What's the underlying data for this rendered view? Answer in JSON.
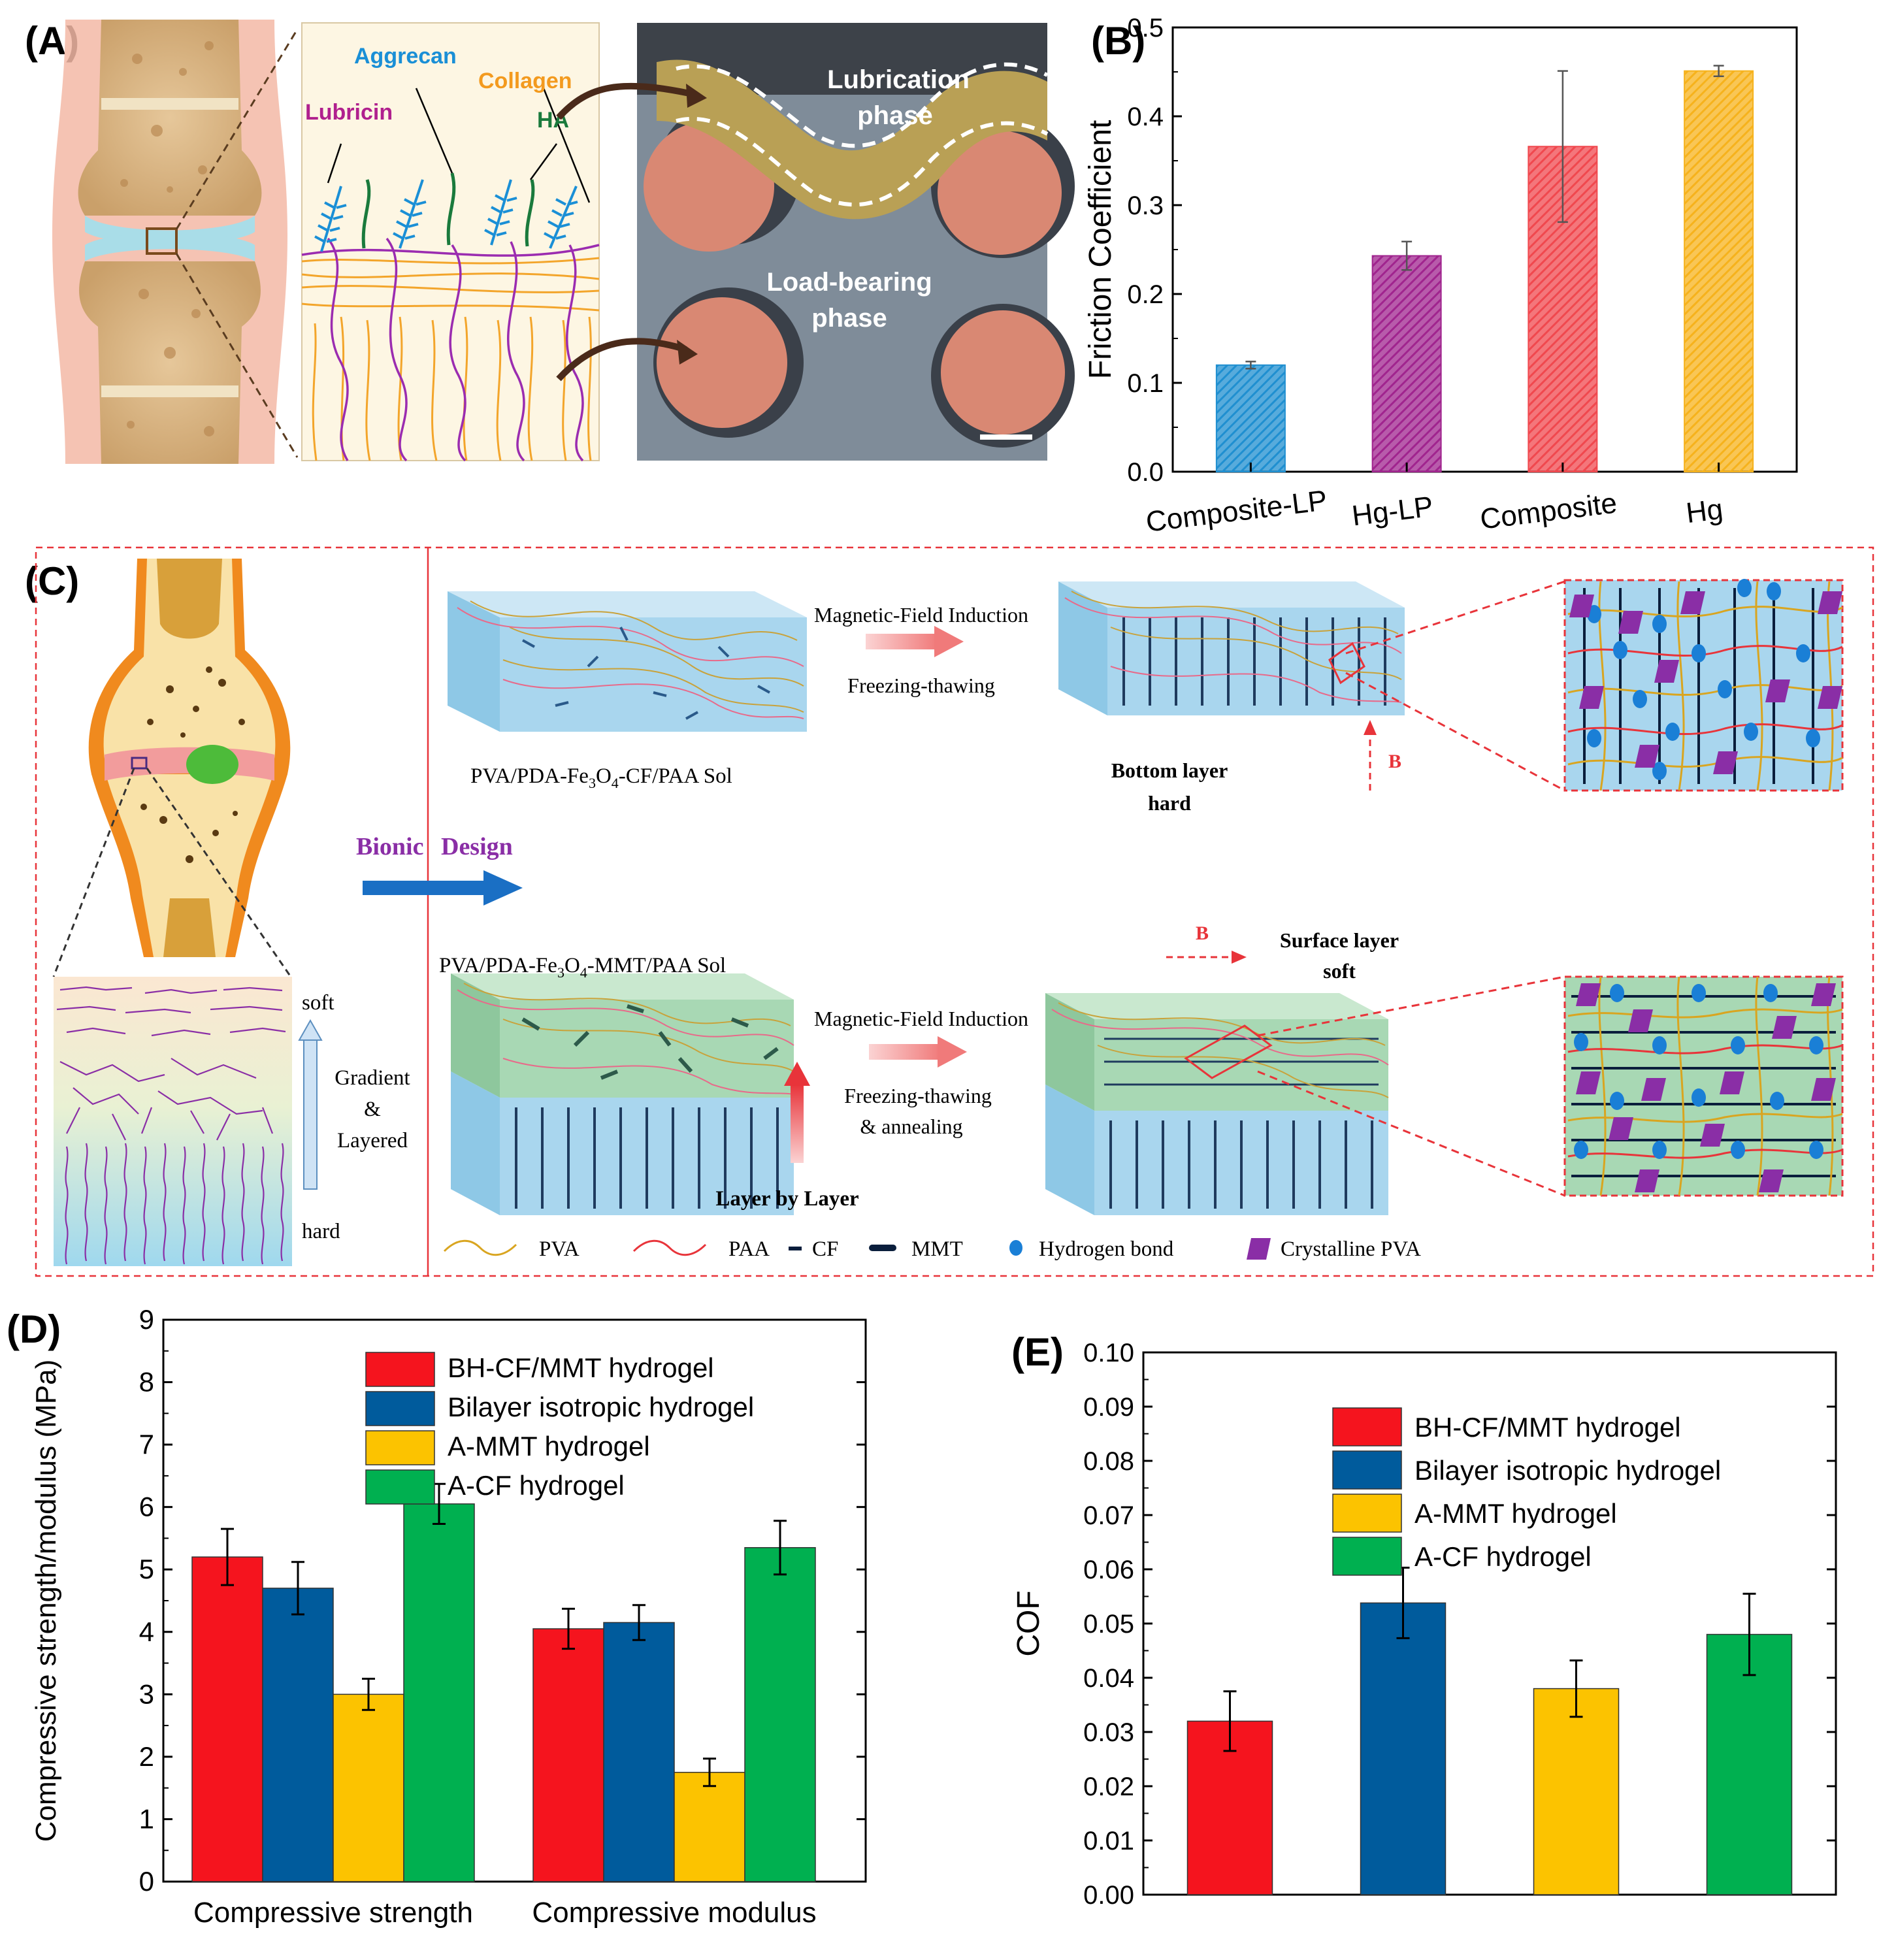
{
  "panels": {
    "a": {
      "label": "(A)",
      "annotations": {
        "aggrecan": "Aggrecan",
        "collagen": "Collagen",
        "lubricin": "Lubricin",
        "ha": "HA",
        "lubrication_1": "Lubrication",
        "lubrication_2": "phase",
        "load_1": "Load-bearing",
        "load_2": "phase"
      },
      "colors": {
        "aggrecan": "#1a8fd6",
        "collagen": "#f39a1e",
        "lubricin": "#b0208e",
        "ha": "#1a7a3c"
      }
    },
    "b": {
      "label": "(B)"
    },
    "c": {
      "label": "(C)",
      "bionic": "Bionic",
      "design": "Design",
      "soft": "soft",
      "hard": "hard",
      "gradient_1": "Gradient",
      "gradient_2": "&",
      "gradient_3": "Layered",
      "top_sol_prefix": "PVA/PDA-Fe",
      "top_sol_sub1": "3",
      "top_sol_mid": "O",
      "top_sol_sub2": "4",
      "top_sol_suffix": "-CF/PAA Sol",
      "bottom_sol_prefix": "PVA/PDA-Fe",
      "bottom_sol_sub1": "3",
      "bottom_sol_mid": "O",
      "bottom_sol_sub2": "4",
      "bottom_sol_suffix": "-MMT/PAA Sol",
      "mag_top": "Magnetic-Field Induction",
      "freeze_top": "Freezing-thawing",
      "mag_bottom": "Magnetic-Field Induction",
      "freeze_bottom_1": "Freezing-thawing",
      "freeze_bottom_2": "& annealing",
      "bottom_layer_1": "Bottom layer",
      "bottom_layer_2": "hard",
      "surface_layer_1": "Surface layer",
      "surface_layer_2": "soft",
      "b_field_top": "B",
      "b_field_bottom": "B",
      "layer_by_layer": "Layer by Layer",
      "legend": {
        "pva": "PVA",
        "paa": "PAA",
        "cf": "CF",
        "mmt": "MMT",
        "hbond": "Hydrogen bond",
        "crystalline": "Crystalline PVA"
      },
      "colors": {
        "pva": "#d9a520",
        "paa": "#e8343a",
        "cf": "#0a1e3c",
        "hbond": "#1a7fd6",
        "crystalline": "#8a2ea6",
        "bionic": "#8a2ea6",
        "arrow": "#1a6fc4"
      }
    },
    "d": {
      "label": "(D)"
    },
    "e": {
      "label": "(E)"
    }
  },
  "chart_data": [
    {
      "id": "B",
      "type": "bar",
      "categories": [
        "Composite-LP",
        "Hg-LP",
        "Composite",
        "Hg"
      ],
      "values": [
        0.12,
        0.243,
        0.366,
        0.451
      ],
      "errors": [
        0.004,
        0.016,
        0.085,
        0.006
      ],
      "ylabel": "Friction Coefficient",
      "ylim": [
        0.0,
        0.5
      ],
      "yticks": [
        "0.0",
        "0.1",
        "0.2",
        "0.3",
        "0.4",
        "0.5"
      ],
      "colors": [
        "#1f8fd0",
        "#a0248e",
        "#f0484e",
        "#f6b21c"
      ],
      "hatched": true
    },
    {
      "id": "D",
      "type": "bar",
      "categories": [
        "Compressive strength",
        "Compressive modulus"
      ],
      "series": [
        {
          "name": "BH-CF/MMT hydrogel",
          "values": [
            5.2,
            4.05
          ],
          "errors": [
            0.45,
            0.32
          ],
          "color": "#f5141e"
        },
        {
          "name": "Bilayer isotropic hydrogel",
          "values": [
            4.7,
            4.15
          ],
          "errors": [
            0.42,
            0.28
          ],
          "color": "#005b9c"
        },
        {
          "name": "A-MMT hydrogel",
          "values": [
            3.0,
            1.75
          ],
          "errors": [
            0.25,
            0.22
          ],
          "color": "#fcc300"
        },
        {
          "name": "A-CF hydrogel",
          "values": [
            6.05,
            5.35
          ],
          "errors": [
            0.32,
            0.43
          ],
          "color": "#00b050"
        }
      ],
      "ylabel": "Compressive strength/modulus (MPa)",
      "ylim": [
        0,
        9
      ],
      "yticks": [
        "0",
        "1",
        "2",
        "3",
        "4",
        "5",
        "6",
        "7",
        "8",
        "9"
      ],
      "legend_position": "top-center"
    },
    {
      "id": "E",
      "type": "bar",
      "categories": [
        "BH-CF/MMT hydrogel",
        "Bilayer isotropic hydrogel",
        "A-MMT hydrogel",
        "A-CF hydrogel"
      ],
      "series": [
        {
          "name": "BH-CF/MMT hydrogel",
          "value": 0.032,
          "error": 0.0055,
          "color": "#f5141e"
        },
        {
          "name": "Bilayer isotropic hydrogel",
          "value": 0.0538,
          "error": 0.0065,
          "color": "#005b9c"
        },
        {
          "name": "A-MMT hydrogel",
          "value": 0.038,
          "error": 0.0052,
          "color": "#fcc300"
        },
        {
          "name": "A-CF hydrogel",
          "value": 0.048,
          "error": 0.0075,
          "color": "#00b050"
        }
      ],
      "ylabel": "COF",
      "ylim": [
        0.0,
        0.1
      ],
      "yticks": [
        "0.00",
        "0.01",
        "0.02",
        "0.03",
        "0.04",
        "0.05",
        "0.06",
        "0.07",
        "0.08",
        "0.09",
        "0.10"
      ],
      "legend_position": "top-center"
    }
  ]
}
